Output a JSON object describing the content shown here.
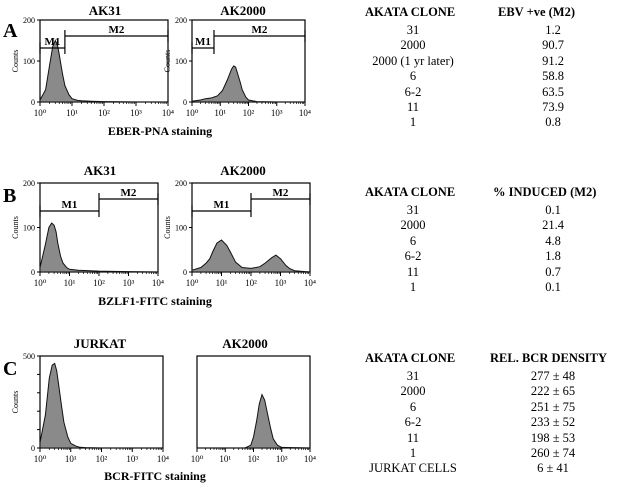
{
  "panels": [
    {
      "letter": "A",
      "stain_label": "EBER-PNA staining",
      "table": {
        "headers": [
          "AKATA CLONE",
          "EBV +ve (M2)"
        ],
        "rows": [
          [
            "31",
            "1.2"
          ],
          [
            "2000",
            "90.7"
          ],
          [
            "2000 (1 yr later)",
            "91.2"
          ],
          [
            "6",
            "58.8"
          ],
          [
            "6-2",
            "63.5"
          ],
          [
            "11",
            "73.9"
          ],
          [
            "1",
            "0.8"
          ]
        ]
      }
    },
    {
      "letter": "B",
      "stain_label": "BZLF1-FITC staining",
      "table": {
        "headers": [
          "AKATA CLONE",
          "%  INDUCED (M2)"
        ],
        "rows": [
          [
            "31",
            "0.1"
          ],
          [
            "2000",
            "21.4"
          ],
          [
            "6",
            "4.8"
          ],
          [
            "6-2",
            "1.8"
          ],
          [
            "11",
            "0.7"
          ],
          [
            "1",
            "0.1"
          ]
        ]
      }
    },
    {
      "letter": "C",
      "stain_label": "BCR-FITC staining",
      "table": {
        "headers": [
          "AKATA CLONE",
          "REL. BCR DENSITY"
        ],
        "rows": [
          [
            "31",
            "277 ± 48"
          ],
          [
            "2000",
            "222 ± 65"
          ],
          [
            "6",
            "251 ± 75"
          ],
          [
            "6-2",
            "233 ± 52"
          ],
          [
            "11",
            "198 ± 53"
          ],
          [
            "1",
            "260 ± 74"
          ],
          [
            "JURKAT CELLS",
            "6 ± 41"
          ]
        ]
      }
    }
  ],
  "chart_data": [
    {
      "type": "area",
      "title": "AK31",
      "ylabel": "Counts",
      "x_scale": "log",
      "xlim": [
        1,
        10000
      ],
      "ylim": [
        0,
        200
      ],
      "x_ticks": [
        "10⁰",
        "10¹",
        "10²",
        "10³",
        "10⁴"
      ],
      "y_ticks": [
        "0",
        "100",
        "200"
      ],
      "gates": [
        {
          "name": "M1",
          "range": [
            1,
            6
          ]
        },
        {
          "name": "M2",
          "range": [
            6,
            10000
          ]
        }
      ],
      "x": [
        1,
        1.5,
        2,
        2.5,
        3,
        3.5,
        4,
        5,
        6,
        8,
        10,
        15,
        20,
        40,
        100,
        1000,
        10000
      ],
      "y": [
        5,
        30,
        90,
        135,
        150,
        140,
        115,
        70,
        40,
        18,
        8,
        4,
        3,
        2,
        1,
        0,
        0
      ]
    },
    {
      "type": "area",
      "title": "AK2000",
      "ylabel": "Counts",
      "x_scale": "log",
      "xlim": [
        1,
        10000
      ],
      "ylim": [
        0,
        200
      ],
      "x_ticks": [
        "10⁰",
        "10¹",
        "10²",
        "10³",
        "10⁴"
      ],
      "y_ticks": [
        "0",
        "100",
        "200"
      ],
      "gates": [
        {
          "name": "M1",
          "range": [
            1,
            6
          ]
        },
        {
          "name": "M2",
          "range": [
            6,
            10000
          ]
        }
      ],
      "x": [
        1,
        2,
        3,
        5,
        8,
        12,
        18,
        25,
        30,
        35,
        40,
        50,
        60,
        80,
        100,
        200,
        1000,
        10000
      ],
      "y": [
        2,
        5,
        8,
        10,
        15,
        28,
        55,
        80,
        88,
        85,
        72,
        50,
        30,
        12,
        5,
        1,
        0,
        0
      ]
    },
    {
      "type": "area",
      "title": "AK31",
      "ylabel": "Counts",
      "x_scale": "log",
      "xlim": [
        1,
        10000
      ],
      "ylim": [
        0,
        200
      ],
      "x_ticks": [
        "10⁰",
        "10¹",
        "10²",
        "10³",
        "10⁴"
      ],
      "y_ticks": [
        "0",
        "100",
        "200"
      ],
      "gates": [
        {
          "name": "M1",
          "range": [
            1,
            100
          ]
        },
        {
          "name": "M2",
          "range": [
            100,
            10000
          ]
        }
      ],
      "x": [
        1,
        1.5,
        2,
        2.5,
        3,
        3.5,
        4,
        5,
        6,
        8,
        10,
        20,
        50,
        100,
        1000,
        10000
      ],
      "y": [
        10,
        60,
        100,
        110,
        105,
        90,
        65,
        35,
        20,
        10,
        6,
        4,
        3,
        2,
        1,
        0
      ]
    },
    {
      "type": "area",
      "title": "AK2000",
      "ylabel": "Counts",
      "x_scale": "log",
      "xlim": [
        1,
        10000
      ],
      "ylim": [
        0,
        200
      ],
      "x_ticks": [
        "10⁰",
        "10¹",
        "10²",
        "10³",
        "10⁴"
      ],
      "y_ticks": [
        "0",
        "100",
        "200"
      ],
      "gates": [
        {
          "name": "M1",
          "range": [
            1,
            100
          ]
        },
        {
          "name": "M2",
          "range": [
            100,
            10000
          ]
        }
      ],
      "x": [
        1,
        2,
        3,
        4,
        5,
        7,
        10,
        15,
        20,
        30,
        50,
        100,
        200,
        300,
        500,
        700,
        1000,
        1500,
        2000,
        3000,
        10000
      ],
      "y": [
        4,
        10,
        20,
        30,
        45,
        65,
        72,
        60,
        45,
        22,
        10,
        8,
        12,
        20,
        32,
        38,
        30,
        15,
        8,
        3,
        0
      ]
    },
    {
      "type": "area",
      "title": "JURKAT",
      "ylabel": "Counts",
      "x_scale": "log",
      "xlim": [
        1,
        10000
      ],
      "ylim": [
        0,
        500
      ],
      "x_ticks": [
        "10⁰",
        "10¹",
        "10²",
        "10³",
        "10⁴"
      ],
      "y_ticks": [
        "0",
        "100",
        "200",
        "300",
        "400",
        "500"
      ],
      "gates": [],
      "x": [
        1,
        1.5,
        2,
        2.5,
        3,
        3.5,
        4,
        5,
        6,
        8,
        10,
        15,
        20,
        30,
        100,
        10000
      ],
      "y": [
        30,
        180,
        380,
        450,
        460,
        420,
        350,
        230,
        140,
        60,
        25,
        10,
        4,
        2,
        0,
        0
      ]
    },
    {
      "type": "area",
      "title": "AK2000",
      "ylabel": "Counts",
      "x_scale": "log",
      "xlim": [
        1,
        10000
      ],
      "ylim": [
        0,
        500
      ],
      "x_ticks": [
        "10⁰",
        "10¹",
        "10²",
        "10³",
        "10⁴"
      ],
      "y_ticks": [],
      "gates": [],
      "x": [
        1,
        50,
        80,
        100,
        130,
        160,
        200,
        250,
        300,
        400,
        500,
        700,
        1000,
        10000
      ],
      "y": [
        0,
        0,
        15,
        60,
        150,
        240,
        290,
        260,
        200,
        110,
        50,
        15,
        3,
        0
      ]
    }
  ]
}
